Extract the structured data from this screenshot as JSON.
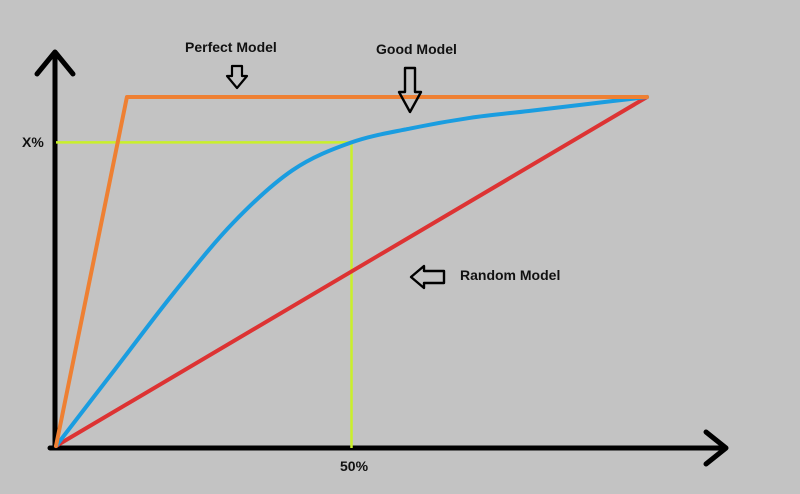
{
  "chart_data": {
    "type": "line",
    "title": "",
    "xlabel": "",
    "ylabel": "",
    "xlim": [
      0,
      100
    ],
    "ylim": [
      0,
      100
    ],
    "x_tick_labels": [
      "50%"
    ],
    "y_tick_labels": [
      "X%"
    ],
    "x_percent_tick": 50,
    "y_percent_tick": 87,
    "grid": false,
    "series": [
      {
        "name": "Perfect Model",
        "color": "#ee8033",
        "x": [
          0,
          12,
          100
        ],
        "y": [
          0,
          100,
          100
        ]
      },
      {
        "name": "Good Model",
        "color": "#1a9de0",
        "x": [
          0,
          10,
          20,
          30,
          40,
          50,
          60,
          70,
          80,
          90,
          100
        ],
        "y": [
          0,
          22,
          44,
          64,
          79,
          87,
          91,
          94,
          96,
          98,
          100
        ]
      },
      {
        "name": "Random Model",
        "color": "#dd3333",
        "x": [
          0,
          100
        ],
        "y": [
          0,
          100
        ]
      }
    ],
    "guide_color": "#c9f02a",
    "axis_color": "#000000"
  },
  "annotations": {
    "perfect_label": "Perfect Model",
    "good_label": "Good Model",
    "random_label": "Random Model",
    "x_mark_label": "50%",
    "y_mark_label": "X%",
    "perfect_arrow_icon": "arrow-down-icon",
    "good_arrow_icon": "arrow-down-icon",
    "random_arrow_icon": "arrow-left-icon"
  }
}
